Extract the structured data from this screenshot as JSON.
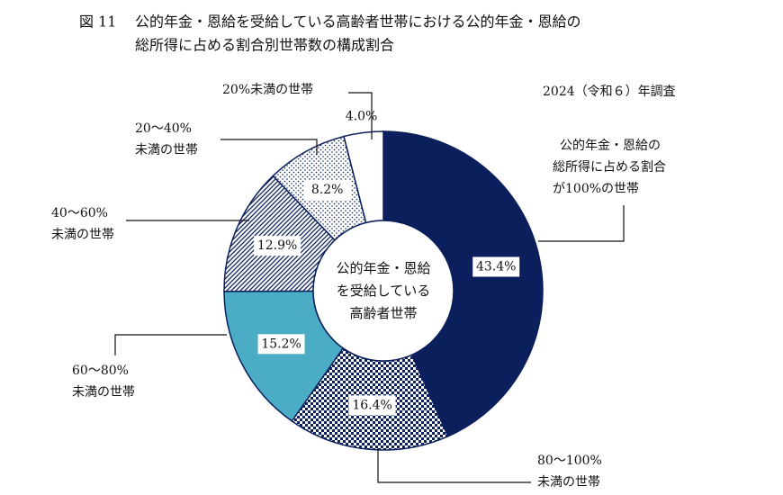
{
  "chart_data": {
    "type": "donut",
    "figure_number": "図 11",
    "title": [
      "公的年金・恩給を受給している高齢者世帯における公的年金・恩給の",
      "総所得に占める割合別世帯数の構成割合"
    ],
    "subtitle": "2024（令和６）年調査",
    "center_label": [
      "公的年金・恩給",
      "を受給している",
      "高齢者世帯"
    ],
    "categories": [
      [
        "公的年金・恩給の",
        "総所得に占める割合",
        "が100%の世帯"
      ],
      [
        "80～100%",
        "未満の世帯"
      ],
      [
        "60～80%",
        "未満の世帯"
      ],
      [
        "40～60%",
        "未満の世帯"
      ],
      [
        "20～40%",
        "未満の世帯"
      ],
      [
        "20%未満の世帯"
      ]
    ],
    "values": [
      43.4,
      16.4,
      15.2,
      12.9,
      8.2,
      4.0
    ],
    "value_labels": [
      "43.4%",
      "16.4%",
      "15.2%",
      "12.9%",
      "8.2%",
      "4.0%"
    ],
    "colors": [
      "#0b1f5c",
      "#0b1f5c",
      "#4bacc6",
      "#0b1f5c",
      "#0b1f5c",
      "#ffffff"
    ],
    "fills": [
      "solid",
      "checker",
      "solid",
      "hatch",
      "dots",
      "solid"
    ]
  }
}
